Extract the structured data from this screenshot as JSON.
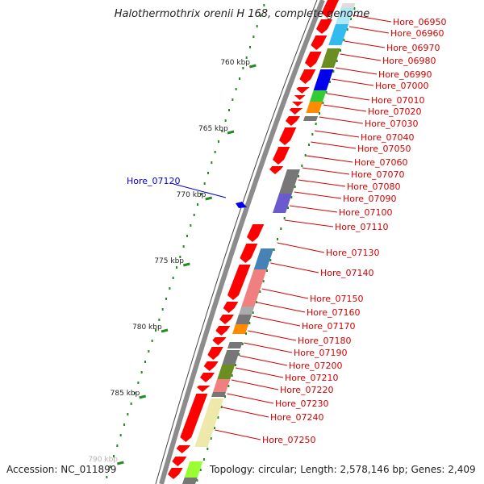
{
  "title": "Halothermothrix orenii H 168, complete genome",
  "accession": "Accession: NC_011899",
  "topology": "Topology: circular; Length: 2,578,146 bp; Genes: 2,409",
  "colors": {
    "backbone": "#8c8c8c",
    "forward_gene": "#ff0000",
    "label_red": "#d40000",
    "label_blue": "#0000cc",
    "dots": "#228b22"
  },
  "kbp_labels": [
    "760 kbp",
    "765 kbp",
    "770 kbp",
    "775 kbp",
    "780 kbp",
    "785 kbp",
    "790 kbp"
  ],
  "highlight_label": "Hore_07120",
  "gene_labels": [
    "Hore_06950",
    "Hore_06960",
    "Hore_06970",
    "Hore_06980",
    "Hore_06990",
    "Hore_07000",
    "Hore_07010",
    "Hore_07020",
    "Hore_07030",
    "Hore_07040",
    "Hore_07050",
    "Hore_07060",
    "Hore_07070",
    "Hore_07080",
    "Hore_07090",
    "Hore_07100",
    "Hore_07110",
    "Hore_07130",
    "Hore_07140",
    "Hore_07150",
    "Hore_07160",
    "Hore_07170",
    "Hore_07180",
    "Hore_07190",
    "Hore_07200",
    "Hore_07210",
    "Hore_07220",
    "Hore_07230",
    "Hore_07240",
    "Hore_07250"
  ],
  "cog_colors": [
    "#aee8f5",
    "#33bbee",
    "#6b8e23",
    "#0000ee",
    "#33cc33",
    "#ff8c00",
    "#777777",
    "#6a5acd",
    "#4682b4",
    "#f08080",
    "#aaaaaa",
    "#eee8aa",
    "#99ff33"
  ]
}
